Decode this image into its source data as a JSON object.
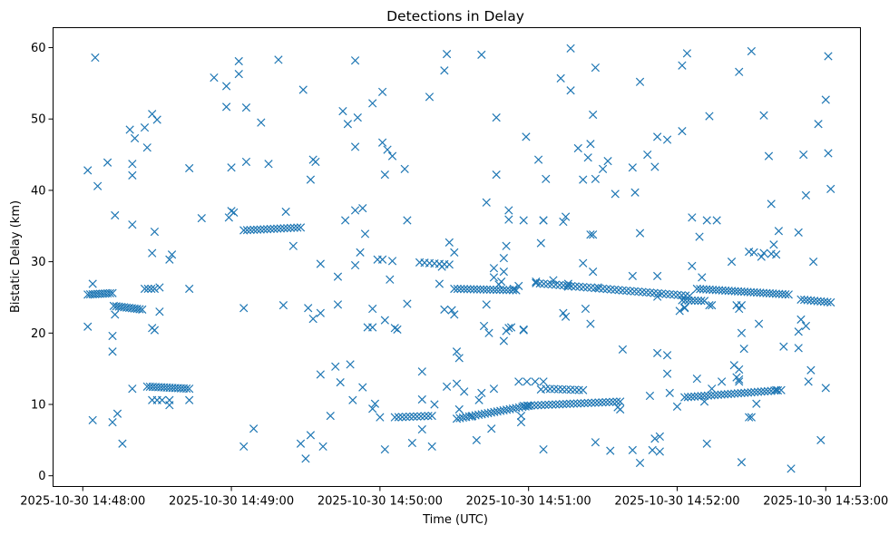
{
  "chart_data": {
    "type": "scatter",
    "title": "Detections in Delay",
    "xlabel": "Time (UTC)",
    "ylabel": "Bistatic Delay (km)",
    "x_unit": "seconds after 2025-10-30 14:48:00 UTC",
    "xlim": [
      -12,
      314
    ],
    "ylim": [
      -1.5,
      62.8
    ],
    "x_ticks": [
      0,
      60,
      120,
      180,
      240,
      300
    ],
    "x_tick_labels": [
      "2025-10-30 14:48:00",
      "2025-10-30 14:49:00",
      "2025-10-30 14:50:00",
      "2025-10-30 14:51:00",
      "2025-10-30 14:52:00",
      "2025-10-30 14:53:00"
    ],
    "y_ticks": [
      0,
      10,
      20,
      30,
      40,
      50,
      60
    ],
    "y_tick_labels": [
      "0",
      "10",
      "20",
      "30",
      "40",
      "50",
      "60"
    ],
    "marker": "x",
    "color": "#1f77b4",
    "tracks": [
      {
        "x_start": 2,
        "x_end": 12,
        "y_start": 25.4,
        "y_end": 25.6,
        "n": 11
      },
      {
        "x_start": 12.5,
        "x_end": 24,
        "y_start": 23.8,
        "y_end": 23.3,
        "n": 12
      },
      {
        "x_start": 25,
        "x_end": 29,
        "y_start": 26.2,
        "y_end": 26.2,
        "n": 4
      },
      {
        "x_start": 26,
        "x_end": 43,
        "y_start": 12.5,
        "y_end": 12.2,
        "n": 16
      },
      {
        "x_start": 65,
        "x_end": 88,
        "y_start": 34.4,
        "y_end": 34.8,
        "n": 18
      },
      {
        "x_start": 126,
        "x_end": 141,
        "y_start": 8.2,
        "y_end": 8.4,
        "n": 11
      },
      {
        "x_start": 136,
        "x_end": 148,
        "y_start": 29.9,
        "y_end": 29.6,
        "n": 7
      },
      {
        "x_start": 150,
        "x_end": 175,
        "y_start": 26.2,
        "y_end": 26.0,
        "n": 20
      },
      {
        "x_start": 151,
        "x_end": 180,
        "y_start": 8.0,
        "y_end": 9.8,
        "n": 24
      },
      {
        "x_start": 176,
        "x_end": 186,
        "y_start": 13.2,
        "y_end": 13.2,
        "n": 4
      },
      {
        "x_start": 178,
        "x_end": 217,
        "y_start": 9.8,
        "y_end": 10.4,
        "n": 28
      },
      {
        "x_start": 183,
        "x_end": 245,
        "y_start": 27.0,
        "y_end": 25.2,
        "n": 40
      },
      {
        "x_start": 187,
        "x_end": 202,
        "y_start": 12.2,
        "y_end": 12.0,
        "n": 10
      },
      {
        "x_start": 243,
        "x_end": 282,
        "y_start": 11.0,
        "y_end": 12.0,
        "n": 30
      },
      {
        "x_start": 248,
        "x_end": 285,
        "y_start": 26.2,
        "y_end": 25.4,
        "n": 30
      },
      {
        "x_start": 242,
        "x_end": 251,
        "y_start": 24.6,
        "y_end": 24.5,
        "n": 8
      },
      {
        "x_start": 290,
        "x_end": 302,
        "y_start": 24.7,
        "y_end": 24.3,
        "n": 10
      }
    ],
    "points": [
      [
        2,
        42.8
      ],
      [
        5,
        58.6
      ],
      [
        6,
        40.6
      ],
      [
        2,
        20.9
      ],
      [
        4,
        7.8
      ],
      [
        4,
        26.9
      ],
      [
        10,
        43.9
      ],
      [
        13,
        36.5
      ],
      [
        12,
        17.4
      ],
      [
        13,
        22.6
      ],
      [
        12,
        19.6
      ],
      [
        14,
        8.7
      ],
      [
        12,
        7.5
      ],
      [
        16,
        4.5
      ],
      [
        19,
        48.5
      ],
      [
        21,
        47.3
      ],
      [
        20,
        43.7
      ],
      [
        20,
        42.1
      ],
      [
        20,
        35.2
      ],
      [
        20,
        12.2
      ],
      [
        25,
        48.8
      ],
      [
        26,
        46.0
      ],
      [
        28,
        50.7
      ],
      [
        30,
        49.9
      ],
      [
        29,
        34.2
      ],
      [
        28,
        31.2
      ],
      [
        28,
        20.7
      ],
      [
        29,
        20.4
      ],
      [
        31,
        26.4
      ],
      [
        31,
        23.0
      ],
      [
        30,
        10.6
      ],
      [
        28,
        10.6
      ],
      [
        32,
        10.6
      ],
      [
        35,
        10.6
      ],
      [
        35,
        30.3
      ],
      [
        36,
        31.0
      ],
      [
        35,
        9.9
      ],
      [
        43,
        26.2
      ],
      [
        43,
        43.1
      ],
      [
        43,
        10.6
      ],
      [
        48,
        36.1
      ],
      [
        53,
        55.8
      ],
      [
        58,
        54.6
      ],
      [
        58,
        51.7
      ],
      [
        60,
        43.2
      ],
      [
        60,
        37.1
      ],
      [
        59,
        36.2
      ],
      [
        61,
        36.9
      ],
      [
        63,
        58.1
      ],
      [
        63,
        56.3
      ],
      [
        66,
        51.6
      ],
      [
        66,
        44.0
      ],
      [
        65,
        23.5
      ],
      [
        65,
        4.1
      ],
      [
        69,
        6.6
      ],
      [
        72,
        49.5
      ],
      [
        75,
        43.7
      ],
      [
        79,
        58.3
      ],
      [
        82,
        37.0
      ],
      [
        81,
        23.9
      ],
      [
        85,
        32.2
      ],
      [
        88,
        4.5
      ],
      [
        89,
        54.1
      ],
      [
        90,
        2.4
      ],
      [
        91,
        23.5
      ],
      [
        92,
        5.7
      ],
      [
        93,
        44.3
      ],
      [
        92,
        41.5
      ],
      [
        93,
        22.0
      ],
      [
        94,
        44.0
      ],
      [
        96,
        29.7
      ],
      [
        96,
        22.8
      ],
      [
        96,
        14.2
      ],
      [
        97,
        4.1
      ],
      [
        100,
        8.4
      ],
      [
        102,
        15.3
      ],
      [
        103,
        27.9
      ],
      [
        103,
        24.0
      ],
      [
        104,
        13.1
      ],
      [
        105,
        51.1
      ],
      [
        106,
        35.8
      ],
      [
        107,
        49.3
      ],
      [
        108,
        15.6
      ],
      [
        109,
        10.6
      ],
      [
        110,
        29.5
      ],
      [
        110,
        58.2
      ],
      [
        111,
        50.2
      ],
      [
        110,
        46.1
      ],
      [
        110,
        37.2
      ],
      [
        112,
        31.3
      ],
      [
        113,
        12.4
      ],
      [
        113,
        37.5
      ],
      [
        114,
        33.9
      ],
      [
        115,
        20.8
      ],
      [
        117,
        20.8
      ],
      [
        117,
        52.2
      ],
      [
        117,
        23.4
      ],
      [
        118,
        10.1
      ],
      [
        117,
        9.4
      ],
      [
        119,
        30.3
      ],
      [
        120,
        8.2
      ],
      [
        121,
        53.8
      ],
      [
        121,
        46.7
      ],
      [
        122,
        42.2
      ],
      [
        121,
        30.3
      ],
      [
        122,
        21.8
      ],
      [
        122,
        3.7
      ],
      [
        123,
        45.7
      ],
      [
        124,
        27.5
      ],
      [
        125,
        44.8
      ],
      [
        125,
        30.1
      ],
      [
        126,
        20.7
      ],
      [
        127,
        20.5
      ],
      [
        130,
        43.0
      ],
      [
        131,
        35.8
      ],
      [
        131,
        24.1
      ],
      [
        133,
        4.6
      ],
      [
        137,
        14.6
      ],
      [
        137,
        10.7
      ],
      [
        137,
        6.5
      ],
      [
        140,
        53.1
      ],
      [
        141,
        4.1
      ],
      [
        142,
        10.0
      ],
      [
        144,
        26.9
      ],
      [
        145,
        29.3
      ],
      [
        146,
        56.8
      ],
      [
        147,
        59.1
      ],
      [
        146,
        23.3
      ],
      [
        147,
        12.5
      ],
      [
        148,
        32.7
      ],
      [
        149,
        23.2
      ],
      [
        150,
        31.3
      ],
      [
        150,
        22.6
      ],
      [
        151,
        17.4
      ],
      [
        152,
        16.5
      ],
      [
        151,
        12.9
      ],
      [
        152,
        9.3
      ],
      [
        154,
        11.8
      ],
      [
        157,
        8.3
      ],
      [
        159,
        5.0
      ],
      [
        160,
        10.6
      ],
      [
        161,
        11.6
      ],
      [
        161,
        59.0
      ],
      [
        162,
        21.0
      ],
      [
        163,
        38.3
      ],
      [
        163,
        24.0
      ],
      [
        164,
        20.0
      ],
      [
        165,
        6.6
      ],
      [
        166,
        27.8
      ],
      [
        166,
        29.1
      ],
      [
        167,
        42.2
      ],
      [
        167,
        50.2
      ],
      [
        166,
        12.2
      ],
      [
        168,
        26.8
      ],
      [
        169,
        27.2
      ],
      [
        170,
        30.5
      ],
      [
        171,
        32.2
      ],
      [
        170,
        28.6
      ],
      [
        170,
        18.9
      ],
      [
        171,
        20.3
      ],
      [
        172,
        37.2
      ],
      [
        172,
        35.9
      ],
      [
        172,
        20.7
      ],
      [
        173,
        20.8
      ],
      [
        174,
        26.2
      ],
      [
        176,
        26.6
      ],
      [
        178,
        35.8
      ],
      [
        178,
        20.5
      ],
      [
        178,
        20.4
      ],
      [
        179,
        47.5
      ],
      [
        177,
        8.4
      ],
      [
        177,
        7.5
      ],
      [
        184,
        44.3
      ],
      [
        183,
        27.2
      ],
      [
        185,
        32.6
      ],
      [
        186,
        35.8
      ],
      [
        186,
        35.8
      ],
      [
        186,
        3.7
      ],
      [
        187,
        41.6
      ],
      [
        185,
        12.1
      ],
      [
        190,
        27.4
      ],
      [
        193,
        55.7
      ],
      [
        194,
        35.6
      ],
      [
        195,
        36.3
      ],
      [
        194,
        22.8
      ],
      [
        195,
        22.3
      ],
      [
        196,
        26.9
      ],
      [
        196,
        26.5
      ],
      [
        197,
        59.9
      ],
      [
        197,
        54.0
      ],
      [
        200,
        45.9
      ],
      [
        202,
        41.5
      ],
      [
        202,
        29.8
      ],
      [
        203,
        23.4
      ],
      [
        204,
        44.6
      ],
      [
        205,
        46.5
      ],
      [
        206,
        50.6
      ],
      [
        205,
        33.8
      ],
      [
        206,
        33.8
      ],
      [
        205,
        21.3
      ],
      [
        206,
        28.6
      ],
      [
        207,
        57.2
      ],
      [
        207,
        41.6
      ],
      [
        207,
        4.7
      ],
      [
        208,
        26.4
      ],
      [
        210,
        43.0
      ],
      [
        212,
        44.1
      ],
      [
        213,
        3.5
      ],
      [
        215,
        39.5
      ],
      [
        218,
        17.7
      ],
      [
        217,
        9.3
      ],
      [
        216,
        9.6
      ],
      [
        222,
        43.2
      ],
      [
        222,
        3.6
      ],
      [
        223,
        39.7
      ],
      [
        222,
        28.0
      ],
      [
        225,
        55.2
      ],
      [
        225,
        34.0
      ],
      [
        225,
        1.8
      ],
      [
        228,
        45.0
      ],
      [
        229,
        11.2
      ],
      [
        231,
        43.3
      ],
      [
        230,
        3.6
      ],
      [
        231,
        5.2
      ],
      [
        232,
        47.5
      ],
      [
        232,
        28.0
      ],
      [
        232,
        25.1
      ],
      [
        232,
        17.2
      ],
      [
        233,
        3.4
      ],
      [
        233,
        5.5
      ],
      [
        236,
        47.1
      ],
      [
        236,
        16.9
      ],
      [
        236,
        14.3
      ],
      [
        237,
        11.6
      ],
      [
        240,
        9.7
      ],
      [
        241,
        23.1
      ],
      [
        242,
        57.5
      ],
      [
        242,
        48.3
      ],
      [
        243,
        23.6
      ],
      [
        243,
        23.5
      ],
      [
        244,
        59.2
      ],
      [
        246,
        36.2
      ],
      [
        246,
        29.4
      ],
      [
        248,
        13.6
      ],
      [
        249,
        33.5
      ],
      [
        250,
        27.8
      ],
      [
        251,
        10.4
      ],
      [
        253,
        50.4
      ],
      [
        252,
        35.8
      ],
      [
        252,
        4.5
      ],
      [
        253,
        23.9
      ],
      [
        254,
        23.9
      ],
      [
        254,
        12.2
      ],
      [
        256,
        35.8
      ],
      [
        258,
        13.2
      ],
      [
        262,
        30.0
      ],
      [
        263,
        15.5
      ],
      [
        264,
        13.8
      ],
      [
        265,
        14.9
      ],
      [
        265,
        13.5
      ],
      [
        265,
        13.2
      ],
      [
        265,
        56.6
      ],
      [
        264,
        23.9
      ],
      [
        265,
        23.4
      ],
      [
        266,
        23.9
      ],
      [
        266,
        20.0
      ],
      [
        266,
        1.9
      ],
      [
        267,
        17.8
      ],
      [
        269,
        31.4
      ],
      [
        270,
        59.5
      ],
      [
        269,
        8.2
      ],
      [
        270,
        8.2
      ],
      [
        271,
        31.3
      ],
      [
        272,
        10.1
      ],
      [
        273,
        21.3
      ],
      [
        274,
        30.7
      ],
      [
        275,
        50.5
      ],
      [
        275,
        31.2
      ],
      [
        277,
        44.8
      ],
      [
        278,
        31.1
      ],
      [
        278,
        38.1
      ],
      [
        279,
        32.4
      ],
      [
        280,
        31.0
      ],
      [
        280,
        12.0
      ],
      [
        281,
        34.3
      ],
      [
        283,
        18.1
      ],
      [
        286,
        1.0
      ],
      [
        289,
        34.1
      ],
      [
        289,
        20.2
      ],
      [
        289,
        17.9
      ],
      [
        290,
        21.9
      ],
      [
        291,
        45.0
      ],
      [
        292,
        21.0
      ],
      [
        292,
        39.3
      ],
      [
        293,
        13.2
      ],
      [
        294,
        14.8
      ],
      [
        295,
        30.0
      ],
      [
        297,
        49.3
      ],
      [
        298,
        5.0
      ],
      [
        300,
        52.7
      ],
      [
        300,
        12.3
      ],
      [
        301,
        58.8
      ],
      [
        301,
        45.2
      ],
      [
        302,
        40.2
      ]
    ]
  }
}
